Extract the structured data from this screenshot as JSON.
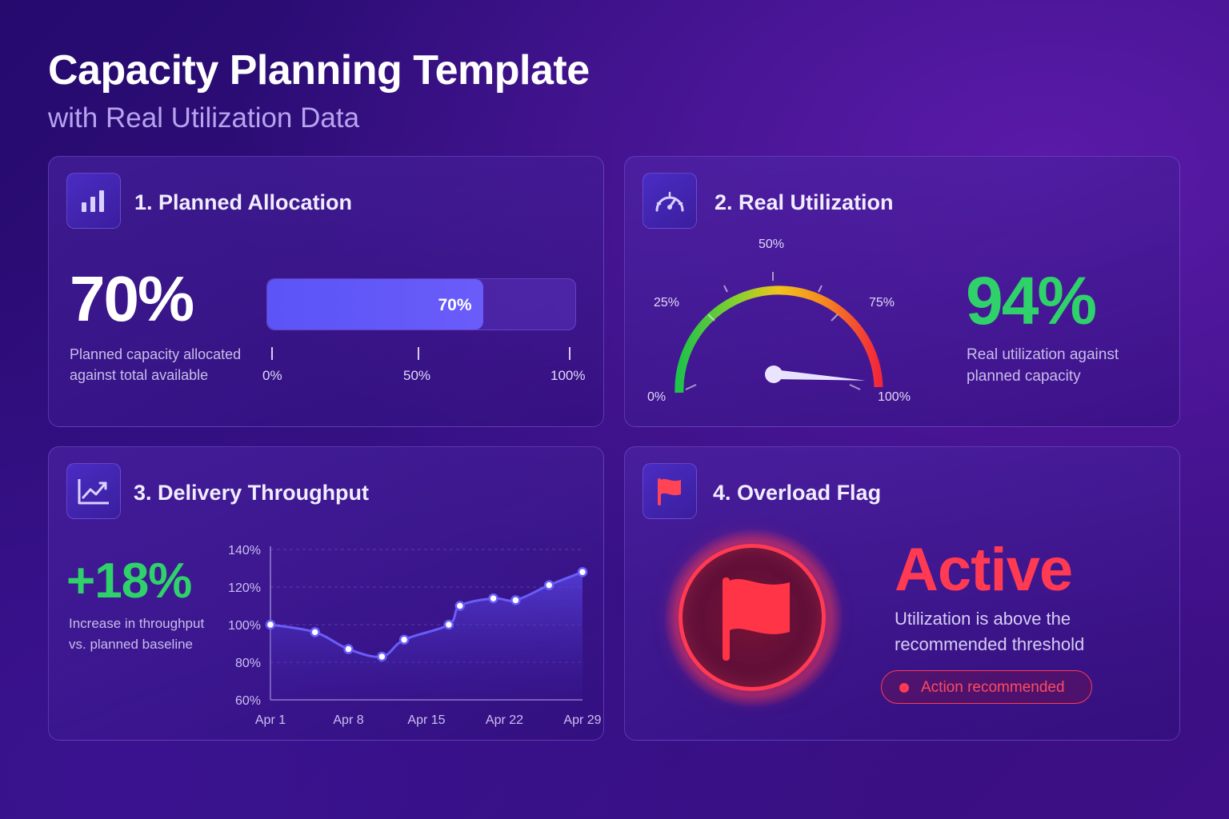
{
  "header": {
    "title": "Capacity Planning Template",
    "subtitle": "with Real Utilization Data"
  },
  "cards": {
    "planned": {
      "title": "1. Planned Allocation",
      "icon": "bar-chart-icon",
      "value_text": "70%",
      "value": 70,
      "description_line1": "Planned capacity allocated",
      "description_line2": "against total available",
      "bar_label": "70%",
      "scale": [
        "0%",
        "50%",
        "100%"
      ],
      "bar_color": "#5a4ff5"
    },
    "utilization": {
      "title": "2. Real Utilization",
      "icon": "speedometer-icon",
      "value_text": "94%",
      "value": 94,
      "description_line1": "Real utilization against",
      "description_line2": "planned capacity",
      "gauge_labels": [
        "0%",
        "25%",
        "50%",
        "75%",
        "100%"
      ],
      "value_color": "#2fd26a"
    },
    "throughput": {
      "title": "3. Delivery Throughput",
      "icon": "trend-up-icon",
      "value_text": "+18%",
      "description_line1": "Increase in throughput",
      "description_line2": "vs. planned baseline",
      "value_color": "#2fd26a"
    },
    "overload": {
      "title": "4. Overload Flag",
      "icon": "flag-icon",
      "status": "Active",
      "description_line1": "Utilization is above the",
      "description_line2": "recommended threshold",
      "badge": "Action recommended",
      "alert_color": "#ff3a52"
    }
  },
  "chart_data": {
    "type": "area",
    "ylim": [
      60,
      140
    ],
    "yticks": [
      "140%",
      "120%",
      "100%",
      "80%",
      "60%"
    ],
    "xticks": [
      "Apr 1",
      "Apr 8",
      "Apr 15",
      "Apr 22",
      "Apr 29"
    ],
    "series": [
      {
        "x": [
          "Apr 1",
          "Apr 5",
          "Apr 8",
          "Apr 11",
          "Apr 13",
          "Apr 17",
          "Apr 18",
          "Apr 21",
          "Apr 23",
          "Apr 26",
          "Apr 29"
        ],
        "values": [
          100,
          96,
          87,
          83,
          92,
          100,
          110,
          114,
          113,
          121,
          128
        ]
      }
    ],
    "grid": true
  }
}
